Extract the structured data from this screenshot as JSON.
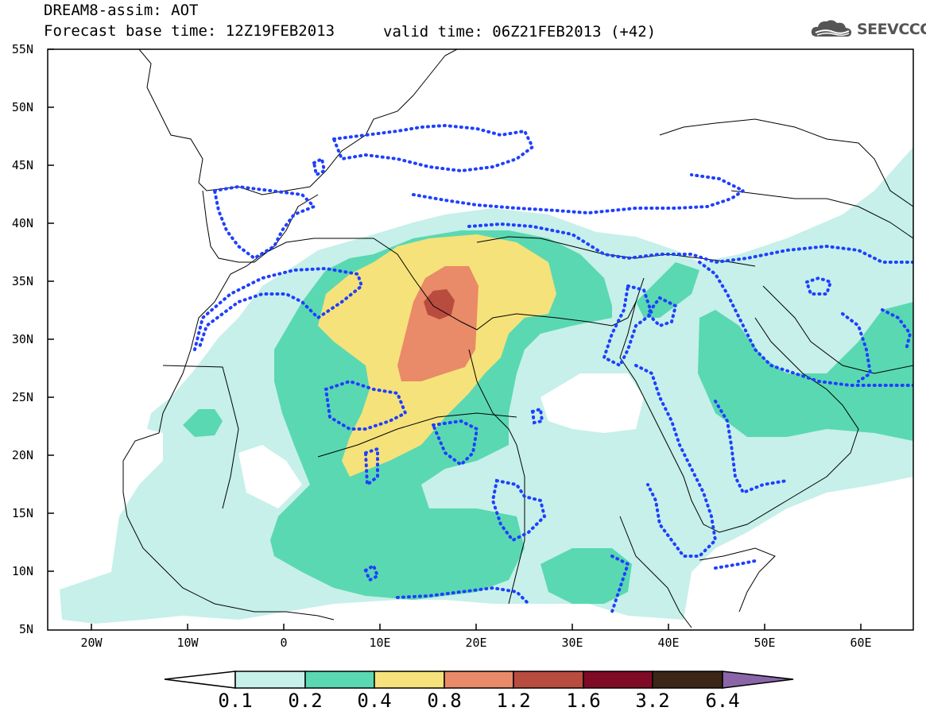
{
  "title": {
    "line1": "DREAM8-assim: AOT",
    "line2_left": "Forecast base time: 12Z19FEB2013",
    "line2_right": "valid time: 06Z21FEB2013 (+42)"
  },
  "logo": {
    "text": "SEEVCCC",
    "icon": "cloud-icon"
  },
  "map": {
    "lat_labels": [
      "55N",
      "50N",
      "45N",
      "40N",
      "35N",
      "30N",
      "25N",
      "20N",
      "15N",
      "10N",
      "5N"
    ],
    "lon_labels": [
      "20W",
      "10W",
      "0",
      "10E",
      "20E",
      "30E",
      "40E",
      "50E",
      "60E"
    ],
    "lon_range": [
      -25,
      65
    ],
    "lat_range": [
      5,
      55
    ],
    "coastlines": true,
    "country_borders": true,
    "observation_contours": "dotted-blue"
  },
  "colorbar": {
    "levels": [
      "0.1",
      "0.2",
      "0.4",
      "0.8",
      "1.2",
      "1.6",
      "3.2",
      "6.4"
    ],
    "colors": [
      "#ffffff",
      "#c6f0e9",
      "#5ad8b2",
      "#f5e27a",
      "#e98a68",
      "#b84c3f",
      "#7f0b27",
      "#3b2617",
      "#8a66a8"
    ],
    "extend": "both"
  }
}
